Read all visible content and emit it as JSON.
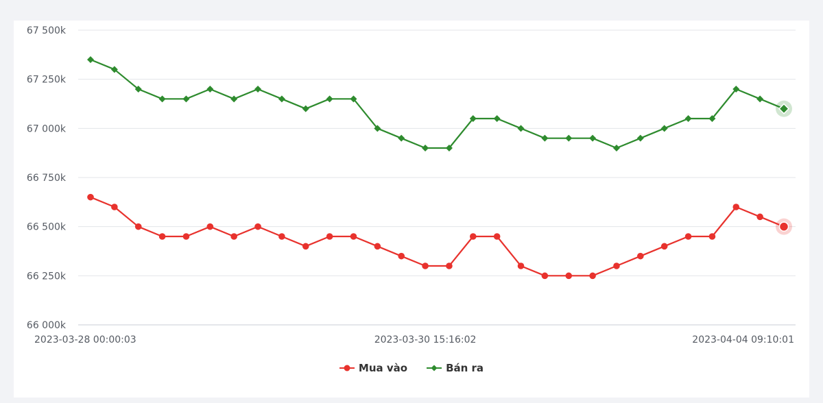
{
  "chart_data": {
    "type": "line",
    "y_unit_suffix": "k",
    "ylim": [
      66000,
      67500
    ],
    "yticks": [
      66000,
      66250,
      66500,
      66750,
      67000,
      67250,
      67500
    ],
    "ytick_labels": [
      "66 000k",
      "66 250k",
      "66 500k",
      "66 750k",
      "67 000k",
      "67 250k",
      "67 500k"
    ],
    "xtick_labels": [
      {
        "index": 0,
        "label": "2023-03-28 00:00:03"
      },
      {
        "index": 14,
        "label": "2023-03-30 15:16:02"
      },
      {
        "index": 29,
        "label": "2023-04-04 09:10:01"
      }
    ],
    "grid": true,
    "legend_position": "bottom-center",
    "series": [
      {
        "name": "Mua vào",
        "color": "#e8322d",
        "marker": "circle",
        "values": [
          66650,
          66600,
          66500,
          66450,
          66450,
          66500,
          66450,
          66500,
          66450,
          66400,
          66450,
          66450,
          66400,
          66350,
          66300,
          66300,
          66450,
          66450,
          66300,
          66250,
          66250,
          66250,
          66300,
          66350,
          66400,
          66450,
          66450,
          66600,
          66550,
          66500
        ]
      },
      {
        "name": "Bán ra",
        "color": "#2e8b2e",
        "marker": "diamond",
        "values": [
          67350,
          67300,
          67200,
          67150,
          67150,
          67200,
          67150,
          67200,
          67150,
          67100,
          67150,
          67150,
          67000,
          66950,
          66900,
          66900,
          67050,
          67050,
          67000,
          66950,
          66950,
          66950,
          66900,
          66950,
          67000,
          67050,
          67050,
          67200,
          67150,
          67100
        ]
      }
    ]
  }
}
